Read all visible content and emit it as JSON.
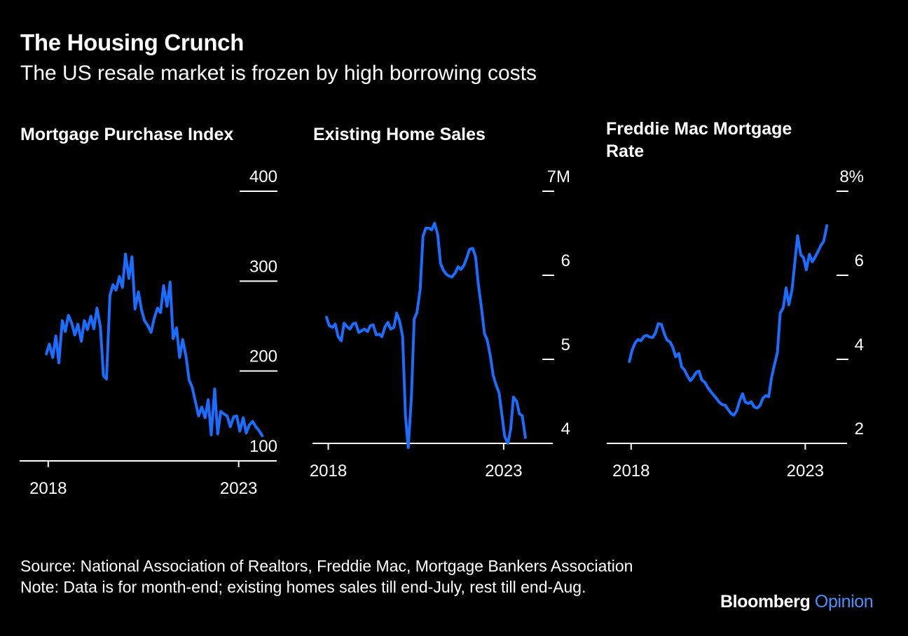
{
  "title": "The Housing Crunch",
  "subtitle": "The US resale market is frozen by high borrowing costs",
  "source": "Source: National Association of Realtors, Freddie Mac, Mortgage Bankers Association",
  "note": "Note: Data is for month-end; existing homes sales till end-July, rest till end-Aug.",
  "brand": {
    "name": "Bloomberg",
    "suffix": "Opinion"
  },
  "colors": {
    "background": "#000000",
    "line": "#1a6dff",
    "text": "#ffffff"
  },
  "chart_data": [
    {
      "type": "line",
      "title": "Mortgage Purchase Index",
      "yticks": [
        100,
        200,
        300,
        400
      ],
      "ytick_labels": [
        "100",
        "200",
        "300",
        "400"
      ],
      "ylim": [
        100,
        400
      ],
      "xticks": [
        2018,
        2023
      ],
      "xlim": [
        2017.25,
        2024.0
      ],
      "series": [
        {
          "x": [
            2017.95,
            2018.03,
            2018.12,
            2018.2,
            2018.28,
            2018.37,
            2018.45,
            2018.53,
            2018.62,
            2018.7,
            2018.78,
            2018.87,
            2018.95,
            2019.03,
            2019.12,
            2019.2,
            2019.28,
            2019.37,
            2019.45,
            2019.53,
            2019.62,
            2019.7,
            2019.78,
            2019.87,
            2019.95,
            2020.03,
            2020.12,
            2020.2,
            2020.28,
            2020.37,
            2020.45,
            2020.53,
            2020.62,
            2020.7,
            2020.78,
            2020.87,
            2020.95,
            2021.03,
            2021.12,
            2021.2,
            2021.28,
            2021.37,
            2021.45,
            2021.53,
            2021.62,
            2021.7,
            2021.78,
            2021.87,
            2021.95,
            2022.03,
            2022.12,
            2022.2,
            2022.28,
            2022.37,
            2022.45,
            2022.53,
            2022.62,
            2022.7,
            2022.78,
            2022.87,
            2022.95,
            2023.03,
            2023.12,
            2023.2,
            2023.28,
            2023.37,
            2023.45,
            2023.53,
            2023.62
          ],
          "y": [
            219,
            230,
            215,
            239,
            209,
            256,
            244,
            262,
            253,
            240,
            252,
            233,
            256,
            246,
            261,
            247,
            270,
            249,
            195,
            191,
            284,
            296,
            290,
            305,
            293,
            330,
            303,
            327,
            269,
            288,
            268,
            256,
            250,
            243,
            258,
            270,
            265,
            295,
            272,
            299,
            236,
            248,
            215,
            235,
            216,
            190,
            182,
            165,
            150,
            160,
            148,
            168,
            129,
            180,
            130,
            155,
            152,
            150,
            138,
            149,
            150,
            133,
            148,
            131,
            140,
            144,
            138,
            134,
            128
          ]
        }
      ]
    },
    {
      "type": "line",
      "title": "Existing Home Sales",
      "yticks": [
        4,
        5,
        6,
        7
      ],
      "ytick_labels": [
        "4",
        "5",
        "6",
        "7M"
      ],
      "ylim": [
        4,
        7
      ],
      "xticks": [
        2018,
        2023
      ],
      "xlim": [
        2017.55,
        2024.4
      ],
      "series": [
        {
          "x": [
            2017.95,
            2018.03,
            2018.12,
            2018.2,
            2018.28,
            2018.37,
            2018.45,
            2018.53,
            2018.62,
            2018.7,
            2018.78,
            2018.87,
            2018.95,
            2019.03,
            2019.12,
            2019.2,
            2019.28,
            2019.37,
            2019.45,
            2019.53,
            2019.62,
            2019.7,
            2019.78,
            2019.87,
            2019.95,
            2020.03,
            2020.12,
            2020.2,
            2020.28,
            2020.37,
            2020.45,
            2020.53,
            2020.62,
            2020.7,
            2020.78,
            2020.87,
            2020.95,
            2021.03,
            2021.12,
            2021.2,
            2021.28,
            2021.37,
            2021.45,
            2021.53,
            2021.62,
            2021.7,
            2021.78,
            2021.87,
            2021.95,
            2022.03,
            2022.12,
            2022.2,
            2022.28,
            2022.37,
            2022.45,
            2022.53,
            2022.62,
            2022.7,
            2022.78,
            2022.87,
            2022.95,
            2023.03,
            2023.12,
            2023.2,
            2023.28,
            2023.37,
            2023.45,
            2023.53,
            2023.62
          ],
          "y": [
            5.5,
            5.4,
            5.38,
            5.42,
            5.27,
            5.22,
            5.43,
            5.39,
            5.36,
            5.42,
            5.43,
            5.32,
            5.34,
            5.36,
            5.33,
            5.4,
            5.41,
            5.29,
            5.3,
            5.27,
            5.39,
            5.44,
            5.36,
            5.38,
            5.55,
            5.46,
            5.27,
            4.33,
            3.95,
            4.55,
            5.48,
            5.56,
            5.83,
            6.46,
            6.56,
            6.56,
            6.54,
            6.62,
            6.48,
            6.14,
            6.06,
            6.01,
            5.99,
            5.98,
            6.03,
            6.1,
            6.07,
            6.12,
            6.21,
            6.31,
            6.32,
            6.22,
            5.89,
            5.6,
            5.31,
            5.23,
            5.04,
            4.81,
            4.7,
            4.6,
            4.34,
            4.08,
            4.0,
            4.17,
            4.55,
            4.5,
            4.35,
            4.33,
            4.07
          ]
        }
      ]
    },
    {
      "type": "line",
      "title": "Freddie Mac Mortgage Rate",
      "yticks": [
        2,
        4,
        6,
        8
      ],
      "ytick_labels": [
        "2",
        "4",
        "6",
        "8%"
      ],
      "ylim": [
        2,
        8
      ],
      "xticks": [
        2018,
        2023
      ],
      "xlim": [
        2017.3,
        2024.2
      ],
      "series": [
        {
          "x": [
            2017.95,
            2018.03,
            2018.12,
            2018.2,
            2018.28,
            2018.37,
            2018.45,
            2018.53,
            2018.62,
            2018.7,
            2018.78,
            2018.87,
            2018.95,
            2019.03,
            2019.12,
            2019.2,
            2019.28,
            2019.37,
            2019.45,
            2019.53,
            2019.62,
            2019.7,
            2019.78,
            2019.87,
            2019.95,
            2020.03,
            2020.12,
            2020.2,
            2020.28,
            2020.37,
            2020.45,
            2020.53,
            2020.62,
            2020.7,
            2020.78,
            2020.87,
            2020.95,
            2021.03,
            2021.12,
            2021.2,
            2021.28,
            2021.37,
            2021.45,
            2021.53,
            2021.62,
            2021.7,
            2021.78,
            2021.87,
            2021.95,
            2022.03,
            2022.12,
            2022.2,
            2022.28,
            2022.37,
            2022.45,
            2022.53,
            2022.62,
            2022.7,
            2022.78,
            2022.87,
            2022.95,
            2023.03,
            2023.12,
            2023.2,
            2023.28,
            2023.37,
            2023.45,
            2023.53,
            2023.62
          ],
          "y": [
            3.95,
            4.22,
            4.4,
            4.47,
            4.44,
            4.55,
            4.57,
            4.53,
            4.52,
            4.63,
            4.85,
            4.83,
            4.62,
            4.46,
            4.41,
            4.28,
            4.06,
            4.14,
            3.82,
            3.75,
            3.6,
            3.49,
            3.57,
            3.69,
            3.72,
            3.51,
            3.45,
            3.33,
            3.24,
            3.15,
            3.07,
            2.98,
            2.92,
            2.91,
            2.81,
            2.71,
            2.67,
            2.77,
            3.02,
            3.18,
            2.98,
            2.95,
            2.99,
            2.87,
            2.84,
            2.9,
            3.07,
            3.14,
            3.11,
            3.55,
            3.89,
            4.16,
            5.1,
            5.23,
            5.7,
            5.3,
            5.66,
            6.29,
            6.94,
            6.49,
            6.42,
            6.13,
            6.5,
            6.32,
            6.43,
            6.57,
            6.71,
            6.81,
            7.18
          ]
        }
      ]
    }
  ]
}
